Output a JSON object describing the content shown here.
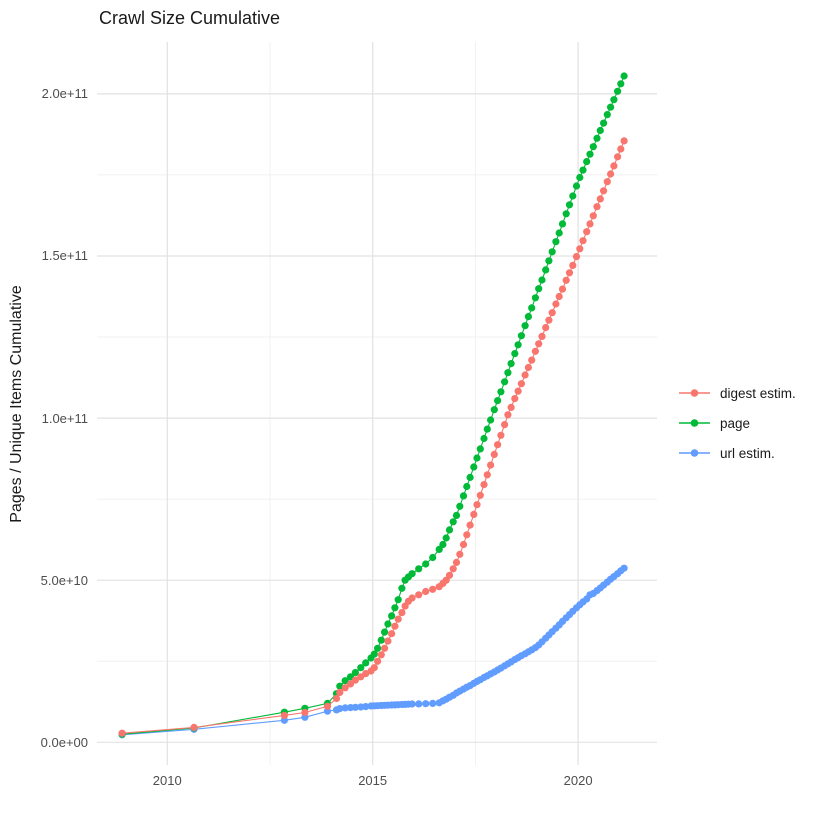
{
  "chart_data": {
    "type": "scatter",
    "title": "Crawl Size Cumulative",
    "xlabel": "",
    "ylabel": "Pages / Unique Items Cumulative",
    "value_unit": "items; point values stored in billions (value × 1e9)",
    "x_domain": [
      2008.29,
      2021.92
    ],
    "y_domain_billions": [
      -7,
      216
    ],
    "grid": "on",
    "legend_position": "right",
    "x_axis": {
      "major_ticks": [
        {
          "value": 2010,
          "label": "2010"
        },
        {
          "value": 2015,
          "label": "2015"
        },
        {
          "value": 2020,
          "label": "2020"
        }
      ],
      "minor_ticks": [
        2012.5,
        2017.5
      ]
    },
    "y_axis": {
      "major_ticks": [
        {
          "value": 0,
          "label": "0.0e+00"
        },
        {
          "value": 50,
          "label": "5.0e+10"
        },
        {
          "value": 100,
          "label": "1.0e+11"
        },
        {
          "value": 150,
          "label": "1.5e+11"
        },
        {
          "value": 200,
          "label": "2.0e+11"
        }
      ],
      "minor_ticks": [
        25,
        75,
        125,
        175
      ]
    },
    "style": {
      "grid_major_color": "#e2e2e2",
      "grid_minor_color": "#f0f0f0",
      "background": "#ffffff",
      "point_radius": 3.6
    },
    "series": [
      {
        "id": "digest",
        "name": "digest estim.",
        "color": "#F8766D",
        "points": [
          [
            2008.9,
            2.8
          ],
          [
            2010.65,
            4.6
          ],
          [
            2012.85,
            8.3
          ],
          [
            2013.35,
            9.2
          ],
          [
            2013.9,
            11.1
          ],
          [
            2014.12,
            13.5
          ],
          [
            2014.2,
            15.4
          ],
          [
            2014.33,
            16.8
          ],
          [
            2014.46,
            18.0
          ],
          [
            2014.58,
            19.2
          ],
          [
            2014.71,
            20.2
          ],
          [
            2014.83,
            21.2
          ],
          [
            2014.96,
            22.0
          ],
          [
            2015.04,
            23.0
          ],
          [
            2015.12,
            25.0
          ],
          [
            2015.21,
            27.0
          ],
          [
            2015.29,
            29.0
          ],
          [
            2015.37,
            31.2
          ],
          [
            2015.46,
            33.5
          ],
          [
            2015.54,
            35.8
          ],
          [
            2015.62,
            38.0
          ],
          [
            2015.71,
            40.0
          ],
          [
            2015.79,
            42.0
          ],
          [
            2015.87,
            43.5
          ],
          [
            2015.96,
            44.5
          ],
          [
            2016.12,
            45.5
          ],
          [
            2016.29,
            46.5
          ],
          [
            2016.46,
            47.2
          ],
          [
            2016.62,
            48.0
          ],
          [
            2016.71,
            49.0
          ],
          [
            2016.79,
            50.0
          ],
          [
            2016.87,
            51.5
          ],
          [
            2016.96,
            53.5
          ],
          [
            2017.04,
            55.5
          ],
          [
            2017.12,
            58.0
          ],
          [
            2017.21,
            61.0
          ],
          [
            2017.29,
            64.0
          ],
          [
            2017.37,
            67.0
          ],
          [
            2017.46,
            70.3
          ],
          [
            2017.54,
            73.3
          ],
          [
            2017.62,
            76.2
          ],
          [
            2017.71,
            79.5
          ],
          [
            2017.79,
            82.5
          ],
          [
            2017.87,
            85.5
          ],
          [
            2017.96,
            88.8
          ],
          [
            2018.04,
            91.8
          ],
          [
            2018.12,
            94.7
          ],
          [
            2018.21,
            98.0
          ],
          [
            2018.29,
            101.0
          ],
          [
            2018.37,
            103.3
          ],
          [
            2018.46,
            106.0
          ],
          [
            2018.54,
            108.3
          ],
          [
            2018.62,
            110.6
          ],
          [
            2018.71,
            113.3
          ],
          [
            2018.79,
            115.6
          ],
          [
            2018.87,
            117.9
          ],
          [
            2018.96,
            120.6
          ],
          [
            2019.04,
            122.9
          ],
          [
            2019.12,
            125.2
          ],
          [
            2019.21,
            127.9
          ],
          [
            2019.29,
            130.2
          ],
          [
            2019.37,
            132.5
          ],
          [
            2019.46,
            135.2
          ],
          [
            2019.54,
            137.5
          ],
          [
            2019.62,
            139.8
          ],
          [
            2019.71,
            142.5
          ],
          [
            2019.79,
            144.8
          ],
          [
            2019.87,
            147.1
          ],
          [
            2019.96,
            149.8
          ],
          [
            2020.04,
            152.2
          ],
          [
            2020.12,
            154.7
          ],
          [
            2020.21,
            157.5
          ],
          [
            2020.29,
            159.9
          ],
          [
            2020.37,
            162.4
          ],
          [
            2020.46,
            165.2
          ],
          [
            2020.54,
            167.6
          ],
          [
            2020.62,
            170.1
          ],
          [
            2020.71,
            172.9
          ],
          [
            2020.79,
            175.3
          ],
          [
            2020.87,
            177.8
          ],
          [
            2020.96,
            180.6
          ],
          [
            2021.04,
            183.0
          ],
          [
            2021.12,
            185.5
          ]
        ]
      },
      {
        "id": "page",
        "name": "page",
        "color": "#00BA38",
        "points": [
          [
            2008.9,
            2.5
          ],
          [
            2010.65,
            4.4
          ],
          [
            2012.85,
            9.3
          ],
          [
            2013.35,
            10.5
          ],
          [
            2013.9,
            12.0
          ],
          [
            2014.12,
            15.0
          ],
          [
            2014.2,
            17.3
          ],
          [
            2014.33,
            19.0
          ],
          [
            2014.46,
            20.2
          ],
          [
            2014.58,
            21.5
          ],
          [
            2014.71,
            23.0
          ],
          [
            2014.83,
            24.5
          ],
          [
            2014.96,
            26.0
          ],
          [
            2015.04,
            27.2
          ],
          [
            2015.12,
            29.0
          ],
          [
            2015.21,
            31.5
          ],
          [
            2015.29,
            34.0
          ],
          [
            2015.37,
            36.5
          ],
          [
            2015.46,
            39.0
          ],
          [
            2015.54,
            41.5
          ],
          [
            2015.62,
            44.0
          ],
          [
            2015.71,
            47.5
          ],
          [
            2015.79,
            50.0
          ],
          [
            2015.87,
            51.0
          ],
          [
            2015.96,
            52.0
          ],
          [
            2016.12,
            53.5
          ],
          [
            2016.29,
            55.0
          ],
          [
            2016.46,
            57.0
          ],
          [
            2016.62,
            59.5
          ],
          [
            2016.71,
            61.0
          ],
          [
            2016.79,
            63.0
          ],
          [
            2016.87,
            65.5
          ],
          [
            2016.96,
            68.0
          ],
          [
            2017.04,
            70.0
          ],
          [
            2017.12,
            72.8
          ],
          [
            2017.21,
            76.0
          ],
          [
            2017.29,
            78.9
          ],
          [
            2017.37,
            81.7
          ],
          [
            2017.46,
            84.9
          ],
          [
            2017.54,
            87.7
          ],
          [
            2017.62,
            90.5
          ],
          [
            2017.71,
            93.7
          ],
          [
            2017.79,
            96.6
          ],
          [
            2017.87,
            99.4
          ],
          [
            2017.96,
            102.6
          ],
          [
            2018.04,
            105.4
          ],
          [
            2018.12,
            108.1
          ],
          [
            2018.21,
            111.2
          ],
          [
            2018.29,
            114.0
          ],
          [
            2018.37,
            116.8
          ],
          [
            2018.46,
            119.9
          ],
          [
            2018.54,
            122.6
          ],
          [
            2018.62,
            125.4
          ],
          [
            2018.71,
            128.5
          ],
          [
            2018.79,
            131.3
          ],
          [
            2018.87,
            134.0
          ],
          [
            2018.96,
            137.1
          ],
          [
            2019.04,
            139.9
          ],
          [
            2019.12,
            142.6
          ],
          [
            2019.21,
            145.7
          ],
          [
            2019.29,
            148.5
          ],
          [
            2019.37,
            151.3
          ],
          [
            2019.46,
            154.4
          ],
          [
            2019.54,
            157.1
          ],
          [
            2019.62,
            159.9
          ],
          [
            2019.71,
            163.0
          ],
          [
            2019.79,
            165.8
          ],
          [
            2019.87,
            168.5
          ],
          [
            2019.96,
            171.6
          ],
          [
            2020.04,
            174.2
          ],
          [
            2020.12,
            176.5
          ],
          [
            2020.21,
            179.1
          ],
          [
            2020.29,
            181.4
          ],
          [
            2020.37,
            183.7
          ],
          [
            2020.46,
            186.3
          ],
          [
            2020.54,
            188.7
          ],
          [
            2020.62,
            191.0
          ],
          [
            2020.71,
            193.6
          ],
          [
            2020.79,
            195.9
          ],
          [
            2020.87,
            198.2
          ],
          [
            2020.96,
            200.8
          ],
          [
            2021.04,
            203.1
          ],
          [
            2021.12,
            205.5
          ]
        ]
      },
      {
        "id": "url",
        "name": "url estim.",
        "color": "#619CFF",
        "points": [
          [
            2008.9,
            2.3
          ],
          [
            2010.65,
            4.0
          ],
          [
            2012.85,
            6.8
          ],
          [
            2013.35,
            7.7
          ],
          [
            2013.9,
            9.6
          ],
          [
            2014.12,
            10.0
          ],
          [
            2014.2,
            10.4
          ],
          [
            2014.33,
            10.6
          ],
          [
            2014.46,
            10.7
          ],
          [
            2014.58,
            10.8
          ],
          [
            2014.71,
            10.9
          ],
          [
            2014.83,
            11.0
          ],
          [
            2014.96,
            11.2
          ],
          [
            2015.04,
            11.25
          ],
          [
            2015.12,
            11.3
          ],
          [
            2015.21,
            11.35
          ],
          [
            2015.29,
            11.4
          ],
          [
            2015.37,
            11.45
          ],
          [
            2015.46,
            11.5
          ],
          [
            2015.54,
            11.55
          ],
          [
            2015.62,
            11.6
          ],
          [
            2015.71,
            11.65
          ],
          [
            2015.79,
            11.7
          ],
          [
            2015.87,
            11.75
          ],
          [
            2015.96,
            11.8
          ],
          [
            2016.12,
            11.85
          ],
          [
            2016.29,
            11.9
          ],
          [
            2016.46,
            12.0
          ],
          [
            2016.62,
            12.2
          ],
          [
            2016.71,
            12.8
          ],
          [
            2016.79,
            13.3
          ],
          [
            2016.87,
            13.9
          ],
          [
            2016.96,
            14.5
          ],
          [
            2017.04,
            15.2
          ],
          [
            2017.12,
            15.8
          ],
          [
            2017.21,
            16.4
          ],
          [
            2017.29,
            17.0
          ],
          [
            2017.37,
            17.5
          ],
          [
            2017.46,
            18.2
          ],
          [
            2017.54,
            18.8
          ],
          [
            2017.62,
            19.3
          ],
          [
            2017.71,
            20.0
          ],
          [
            2017.79,
            20.5
          ],
          [
            2017.87,
            21.1
          ],
          [
            2017.96,
            21.7
          ],
          [
            2018.04,
            22.3
          ],
          [
            2018.12,
            22.9
          ],
          [
            2018.21,
            23.6
          ],
          [
            2018.29,
            24.2
          ],
          [
            2018.37,
            24.8
          ],
          [
            2018.46,
            25.5
          ],
          [
            2018.54,
            26.1
          ],
          [
            2018.62,
            26.7
          ],
          [
            2018.71,
            27.3
          ],
          [
            2018.79,
            27.9
          ],
          [
            2018.87,
            28.5
          ],
          [
            2018.96,
            29.2
          ],
          [
            2019.04,
            30.0
          ],
          [
            2019.12,
            31.0
          ],
          [
            2019.21,
            32.1
          ],
          [
            2019.29,
            33.1
          ],
          [
            2019.37,
            34.1
          ],
          [
            2019.46,
            35.2
          ],
          [
            2019.54,
            36.2
          ],
          [
            2019.62,
            37.3
          ],
          [
            2019.71,
            38.4
          ],
          [
            2019.79,
            39.4
          ],
          [
            2019.87,
            40.4
          ],
          [
            2019.96,
            41.5
          ],
          [
            2020.04,
            42.4
          ],
          [
            2020.12,
            43.3
          ],
          [
            2020.21,
            44.2
          ],
          [
            2020.29,
            45.5
          ],
          [
            2020.37,
            45.9
          ],
          [
            2020.46,
            46.8
          ],
          [
            2020.54,
            47.6
          ],
          [
            2020.62,
            48.5
          ],
          [
            2020.71,
            49.4
          ],
          [
            2020.79,
            50.3
          ],
          [
            2020.87,
            51.1
          ],
          [
            2020.96,
            52.0
          ],
          [
            2021.04,
            52.9
          ],
          [
            2021.12,
            53.7
          ]
        ]
      }
    ]
  }
}
